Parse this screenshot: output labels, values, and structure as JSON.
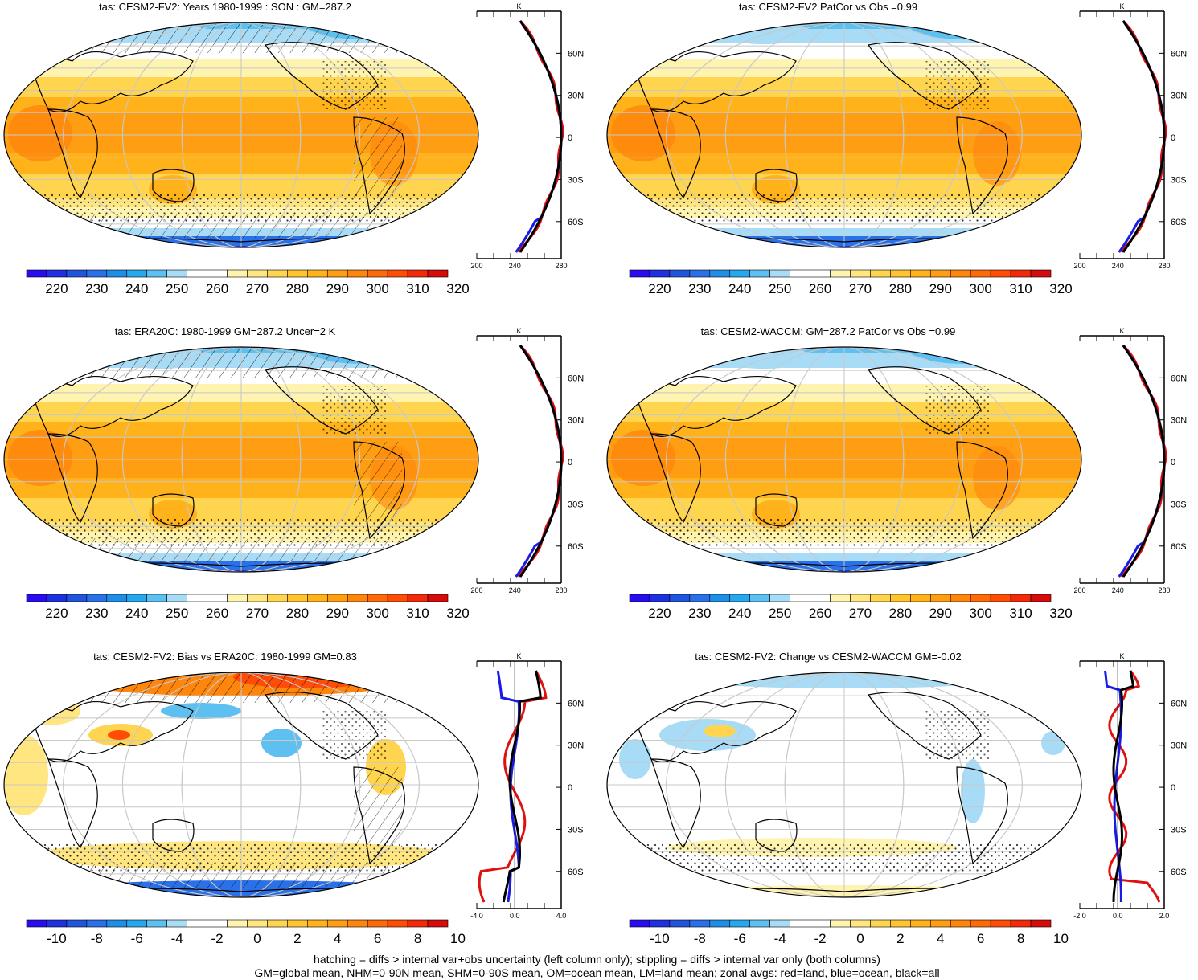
{
  "panels": [
    {
      "id": "p1",
      "title": "tas: CESM2-FV2: Years 1980-1999 : SON : GM=287.2",
      "kind": "abs",
      "hatch": true,
      "stipple": true,
      "zonal_ticks": [
        "200",
        "240",
        "280"
      ],
      "zonal_unit": "K",
      "profile": "abs"
    },
    {
      "id": "p2",
      "title": "tas: CESM2-FV2 PatCor vs Obs =0.99",
      "kind": "abs",
      "hatch": false,
      "stipple": true,
      "zonal_ticks": [
        "200",
        "240",
        "280"
      ],
      "zonal_unit": "K",
      "profile": "abs"
    },
    {
      "id": "p3",
      "title": "tas: ERA20C: 1980-1999 GM=287.2 Uncer=2 K",
      "kind": "abs",
      "hatch": true,
      "stipple": true,
      "zonal_ticks": [
        "200",
        "240",
        "280"
      ],
      "zonal_unit": "K",
      "profile": "abs"
    },
    {
      "id": "p4",
      "title": "tas: CESM2-WACCM: GM=287.2 PatCor vs Obs =0.99",
      "kind": "abs",
      "hatch": false,
      "stipple": true,
      "zonal_ticks": [
        "200",
        "240",
        "280"
      ],
      "zonal_unit": "K",
      "profile": "abs"
    },
    {
      "id": "p5",
      "title": "tas: CESM2-FV2: Bias vs ERA20C: 1980-1999  GM=0.83",
      "kind": "bias",
      "hatch": true,
      "stipple": true,
      "zonal_ticks": [
        "-4.0",
        "0.0",
        "4.0"
      ],
      "zonal_unit": "K",
      "profile": "bias"
    },
    {
      "id": "p6",
      "title": "tas: CESM2-FV2: Change vs CESM2-WACCM GM=-0.02",
      "kind": "change",
      "hatch": false,
      "stipple": true,
      "zonal_ticks": [
        "-2.0",
        "0.0",
        "2.0"
      ],
      "zonal_unit": "K",
      "profile": "change"
    }
  ],
  "lat_labels": [
    "60N",
    "30N",
    "0",
    "30S",
    "60S"
  ],
  "colorbars": {
    "abs": {
      "labels": [
        "220",
        "230",
        "240",
        "250",
        "260",
        "270",
        "280",
        "290",
        "300",
        "310",
        "320"
      ],
      "colors": [
        "#2a0cf0",
        "#1e30e0",
        "#2255dd",
        "#2a70e8",
        "#1e8fe6",
        "#25a8ee",
        "#5ec0f0",
        "#a8dcf6",
        "#ffffff",
        "#ffffff",
        "#fff3b0",
        "#ffe680",
        "#ffd54f",
        "#ffc42e",
        "#ffb21a",
        "#ff9e12",
        "#ff860c",
        "#ff6a08",
        "#ff4c06",
        "#f22a0a",
        "#d60b0b"
      ]
    },
    "anom": {
      "labels": [
        "-10",
        "-8",
        "-6",
        "-4",
        "-2",
        "0",
        "2",
        "4",
        "6",
        "8",
        "10"
      ],
      "colors": [
        "#2a0cf0",
        "#1e30e0",
        "#2255dd",
        "#2a70e8",
        "#1e8fe6",
        "#25a8ee",
        "#5ec0f0",
        "#a8dcf6",
        "#ffffff",
        "#ffffff",
        "#fff3b0",
        "#ffe680",
        "#ffd54f",
        "#ffc42e",
        "#ffb21a",
        "#ff9e12",
        "#ff860c",
        "#ff6a08",
        "#ff4c06",
        "#f22a0a",
        "#d60b0b"
      ]
    }
  },
  "footer": {
    "line1": "hatching = diffs > internal var+obs uncertainty (left column only); stippling = diffs > internal var only (both columns)",
    "line2": "GM=global mean, NHM=0-90N mean, SHM=0-90S mean, OM=ocean mean, LM=land mean; zonal avgs: red=land, blue=ocean, black=all"
  }
}
